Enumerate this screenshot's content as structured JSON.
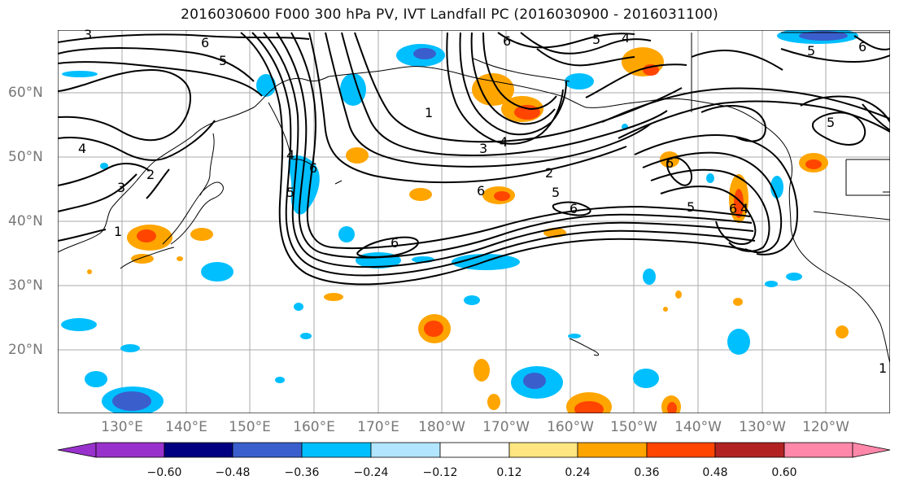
{
  "title": "2016030600 F000 300 hPa PV, IVT Landfall PC (2016030900 - 2016031100)",
  "lat_labels": [
    "60°N",
    "50°N",
    "40°N",
    "30°N",
    "20°N"
  ],
  "lon_labels": [
    "130°E",
    "140°E",
    "150°E",
    "160°E",
    "170°E",
    "180°W",
    "170°W",
    "160°W",
    "150°W",
    "140°W",
    "130°W",
    "120°W"
  ],
  "contour_labels": [
    "3",
    "6",
    "5",
    "4",
    "2",
    "1",
    "3",
    "6",
    "5",
    "4",
    "6",
    "5",
    "5",
    "6",
    "4",
    "1",
    "3",
    "4",
    "2",
    "5",
    "6",
    "6",
    "6",
    "6",
    "5",
    "4",
    "5",
    "6",
    "1"
  ],
  "colorbar": {
    "tick_labels": [
      "−0.60",
      "−0.48",
      "−0.36",
      "−0.24",
      "−0.12",
      "0.12",
      "0.24",
      "0.36",
      "0.48",
      "0.60"
    ],
    "colors": [
      "#9932cc",
      "#000080",
      "#3a5fcd",
      "#00bfff",
      "#b2e5ff",
      "#ffffff",
      "#ffe680",
      "#ffa500",
      "#ff4500",
      "#b22222",
      "#ff88aa"
    ]
  }
}
